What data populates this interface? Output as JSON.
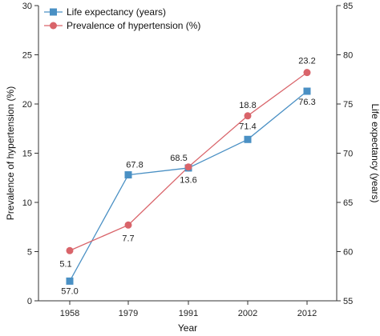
{
  "chart_data": {
    "type": "line",
    "categories": [
      "1958",
      "1979",
      "1991",
      "2002",
      "2012"
    ],
    "xlabel": "Year",
    "ylabel_left": "Prevalence of hypertension (%)",
    "ylabel_right": "Life expectancy (years)",
    "ylim_left": [
      0,
      30
    ],
    "ylim_right": [
      55,
      85
    ],
    "yticks_left": [
      0,
      5,
      10,
      15,
      20,
      25,
      30
    ],
    "yticks_right": [
      55,
      60,
      65,
      70,
      75,
      80,
      85
    ],
    "legend_position": "top-left",
    "grid": false,
    "series": [
      {
        "name": "Life expectancy (years)",
        "axis": "right",
        "marker": "square",
        "color": "#4a90c4",
        "values": [
          57.0,
          67.8,
          68.5,
          71.4,
          76.3
        ],
        "labels": [
          "57.0",
          "67.8",
          "68.5",
          "71.4",
          "76.3"
        ]
      },
      {
        "name": "Prevalence of hypertension (%)",
        "axis": "left",
        "marker": "circle",
        "color": "#d9646a",
        "values": [
          5.1,
          7.7,
          13.6,
          18.8,
          23.2
        ],
        "labels": [
          "5.1",
          "7.7",
          "13.6",
          "18.8",
          "23.2"
        ]
      }
    ]
  }
}
